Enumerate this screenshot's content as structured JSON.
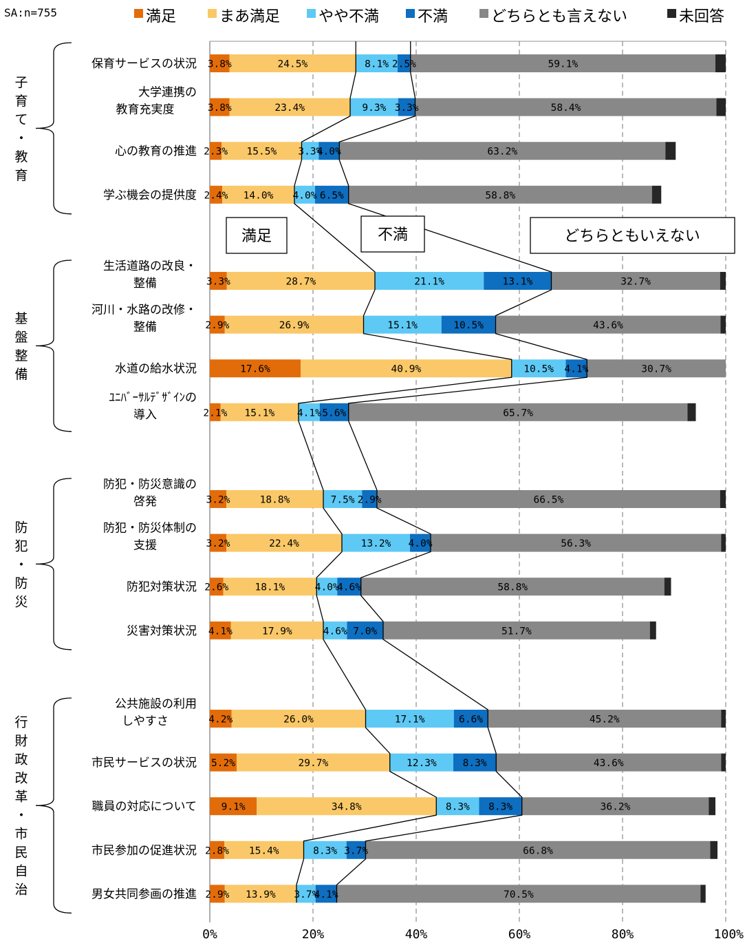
{
  "sample_label": "SA:n=755",
  "annotations": {
    "satisfied": "満足",
    "dissatisfied": "不満",
    "neutral": "どちらともいえない"
  },
  "chart_data": {
    "type": "bar",
    "orientation": "horizontal",
    "stacked": "percent",
    "xlim": [
      0,
      100
    ],
    "x_ticks": [
      "0%",
      "20%",
      "40%",
      "60%",
      "80%",
      "100%"
    ],
    "grid": "vertical dashed",
    "legend_position": "top",
    "series": [
      {
        "name": "満足",
        "color": "#E36C0A"
      },
      {
        "name": "まあ満足",
        "color": "#FAC868"
      },
      {
        "name": "やや不満",
        "color": "#5EC9F5"
      },
      {
        "name": "不満",
        "color": "#0E6EBF"
      },
      {
        "name": "どちらとも言えない",
        "color": "#888888"
      },
      {
        "name": "未回答",
        "color": "#262626"
      }
    ],
    "groups": [
      {
        "name": "子育て・教育",
        "categories": [
          {
            "label": [
              "保育サービスの状況"
            ],
            "values": [
              3.8,
              24.5,
              8.1,
              2.5,
              59.1,
              2.0
            ]
          },
          {
            "label": [
              "大学連携の",
              "教育充実度"
            ],
            "values": [
              3.8,
              23.4,
              9.3,
              3.3,
              58.4,
              1.8
            ]
          },
          {
            "label": [
              "心の教育の推進"
            ],
            "values": [
              2.3,
              15.5,
              3.3,
              4.0,
              63.2,
              2.0
            ]
          },
          {
            "label": [
              "学ぶ機会の提供度"
            ],
            "values": [
              2.4,
              14.0,
              4.0,
              6.5,
              58.8,
              1.8
            ]
          }
        ]
      },
      {
        "name": "基盤整備",
        "categories": [
          {
            "label": [
              "生活道路の改良・",
              "整備"
            ],
            "values": [
              3.3,
              28.7,
              21.1,
              13.1,
              32.7,
              1.1
            ]
          },
          {
            "label": [
              "河川・水路の改修・",
              "整備"
            ],
            "values": [
              2.9,
              26.9,
              15.1,
              10.5,
              43.6,
              1.0
            ]
          },
          {
            "label": [
              "水道の給水状況"
            ],
            "values": [
              17.6,
              40.9,
              10.5,
              4.1,
              30.7,
              0.8
            ]
          },
          {
            "label": [
              "ﾕﾆﾊﾞｰｻﾙﾃﾞｻﾞｲﾝの",
              "導入"
            ],
            "values": [
              2.1,
              15.1,
              4.1,
              5.6,
              65.7,
              1.6
            ]
          }
        ]
      },
      {
        "name": "防犯・防災",
        "categories": [
          {
            "label": [
              "防犯・防災意識の",
              "啓発"
            ],
            "values": [
              3.2,
              18.8,
              7.5,
              2.9,
              66.5,
              1.1
            ]
          },
          {
            "label": [
              "防犯・防災体制の",
              "支援"
            ],
            "values": [
              3.2,
              22.4,
              13.2,
              4.0,
              56.3,
              0.9
            ]
          },
          {
            "label": [
              "防犯対策状況"
            ],
            "values": [
              2.6,
              18.1,
              4.0,
              4.6,
              58.8,
              1.3
            ]
          },
          {
            "label": [
              "災害対策状況"
            ],
            "values": [
              4.1,
              17.9,
              4.6,
              7.0,
              51.7,
              1.2
            ]
          }
        ]
      },
      {
        "name": "行財政改革・市民自治",
        "categories": [
          {
            "label": [
              "公共施設の利用",
              "しやすさ"
            ],
            "values": [
              4.2,
              26.0,
              17.1,
              6.6,
              45.2,
              0.9
            ]
          },
          {
            "label": [
              "市民サービスの状況"
            ],
            "values": [
              5.2,
              29.7,
              12.3,
              8.3,
              43.6,
              0.9
            ]
          },
          {
            "label": [
              "職員の対応について"
            ],
            "values": [
              9.1,
              34.8,
              8.3,
              8.3,
              36.2,
              1.3
            ]
          },
          {
            "label": [
              "市民参加の促進状況"
            ],
            "values": [
              2.8,
              15.4,
              8.3,
              3.7,
              66.8,
              1.4
            ]
          },
          {
            "label": [
              "男女共同参画の推進"
            ],
            "values": [
              2.9,
              13.9,
              3.7,
              4.1,
              70.5,
              1.0
            ]
          }
        ]
      }
    ]
  }
}
